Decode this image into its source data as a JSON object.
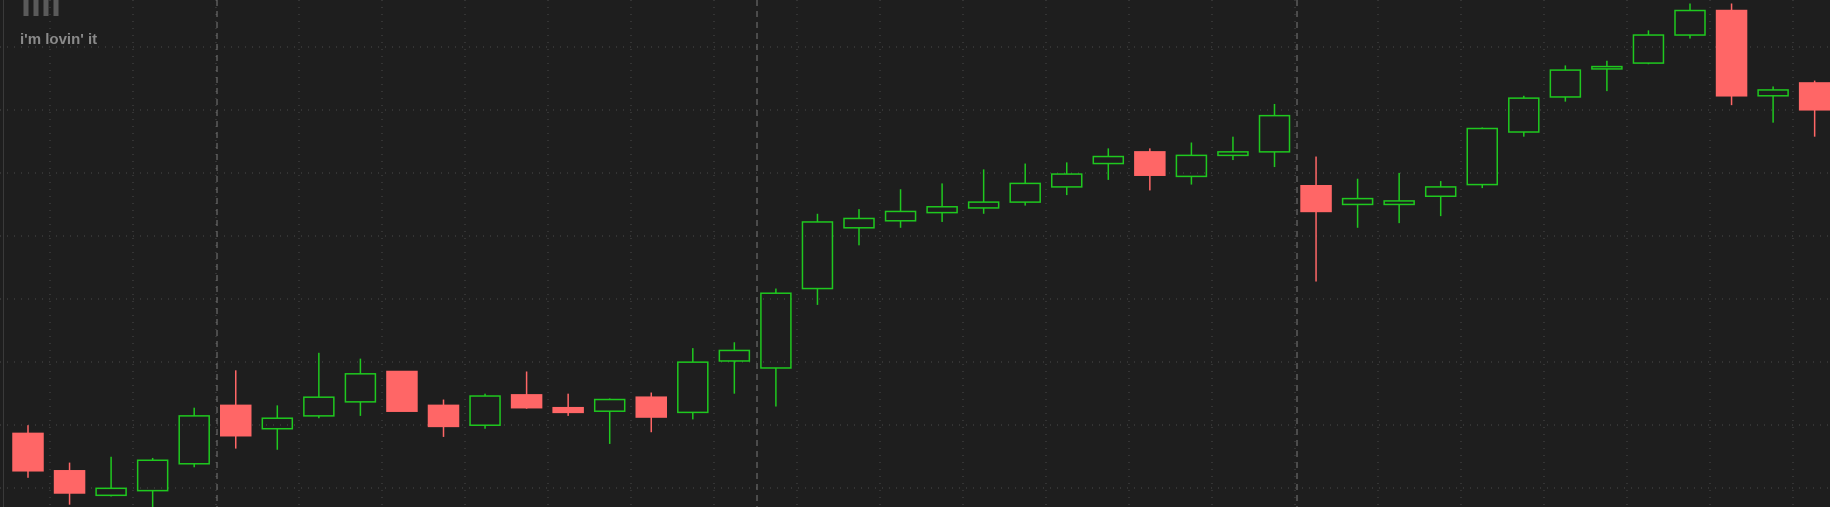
{
  "chart_data": {
    "type": "candlestick",
    "logo_text": "i'm lovin' it",
    "ylim": [
      0,
      434
    ],
    "grid": true,
    "up_color": "#1fc81f",
    "down_color": "#ff6666",
    "open": [
      63,
      31,
      10,
      14,
      37,
      87,
      67,
      78,
      90,
      116,
      87,
      70,
      96,
      85,
      82,
      94,
      81,
      125,
      119,
      187,
      239,
      245,
      252,
      256,
      261,
      274,
      294,
      304,
      283,
      301,
      304,
      275,
      259,
      259,
      266,
      276,
      321,
      351,
      375,
      380,
      404,
      425,
      352,
      363
    ],
    "high": [
      70,
      38,
      43,
      42,
      85,
      117,
      87,
      132,
      127,
      116,
      92,
      97,
      116,
      97,
      93,
      98,
      136,
      141,
      187,
      251,
      255,
      272,
      277,
      289,
      294,
      295,
      307,
      307,
      312,
      317,
      345,
      300,
      281,
      286,
      279,
      325,
      352,
      378,
      382,
      408,
      431,
      431,
      360,
      365
    ],
    "low": [
      25,
      2,
      9,
      0,
      34,
      50,
      49,
      76,
      78,
      82,
      60,
      67,
      84,
      78,
      54,
      64,
      75,
      97,
      86,
      173,
      224,
      239,
      244,
      251,
      258,
      267,
      280,
      271,
      276,
      297,
      291,
      193,
      239,
      243,
      249,
      273,
      317,
      347,
      356,
      379,
      401,
      344,
      329,
      317
    ],
    "close": [
      31,
      12,
      16,
      40,
      78,
      61,
      76,
      94,
      114,
      82,
      69,
      95,
      85,
      81,
      92,
      77,
      124,
      134,
      183,
      244,
      247,
      253,
      257,
      261,
      277,
      285,
      300,
      284,
      301,
      304,
      335,
      253,
      264,
      262,
      274,
      324,
      350,
      374,
      377,
      404,
      425,
      352,
      357,
      340
    ]
  }
}
